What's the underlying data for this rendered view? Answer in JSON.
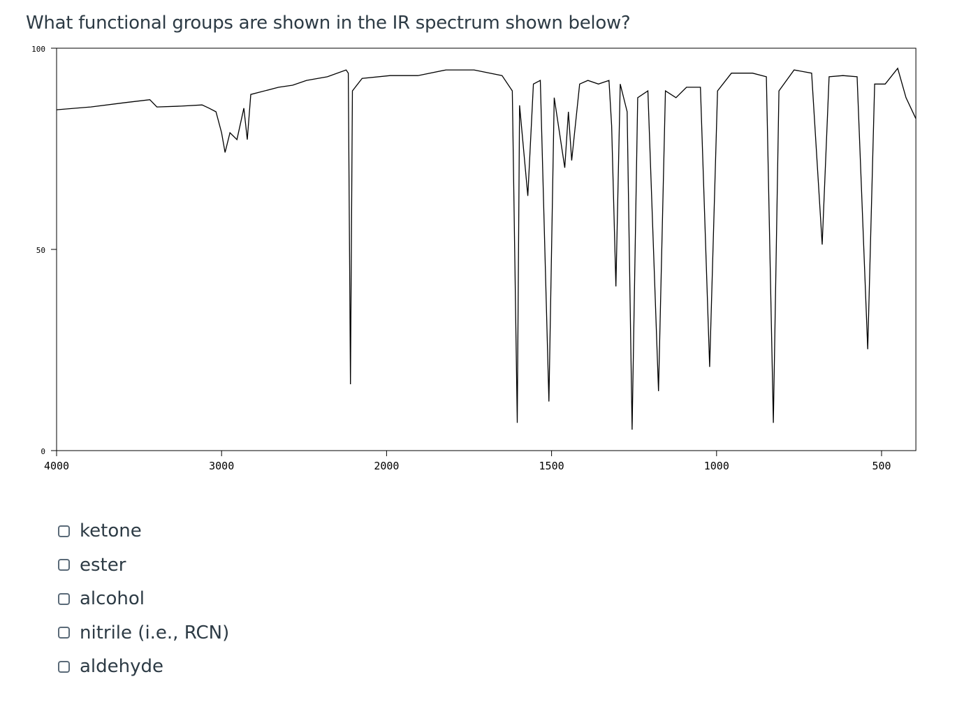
{
  "question": "What functional groups are shown in the IR spectrum shown below?",
  "chart_data": {
    "type": "line",
    "color": "#000000",
    "x": [
      4000,
      3793,
      3582,
      3435,
      3392,
      3245,
      3118,
      3076,
      3034,
      3000,
      2979,
      2949,
      2907,
      2865,
      2844,
      2823,
      2654,
      2570,
      2485,
      2359,
      2245,
      2232,
      2219,
      2207,
      2148,
      1989,
      1905,
      1820,
      1735,
      1650,
      1619,
      1604,
      1597,
      1572,
      1555,
      1534,
      1508,
      1492,
      1460,
      1449,
      1439,
      1415,
      1390,
      1358,
      1326,
      1318,
      1305,
      1292,
      1271,
      1256,
      1239,
      1208,
      1176,
      1155,
      1123,
      1091,
      1049,
      1021,
      997,
      955,
      891,
      849,
      828,
      811,
      765,
      712,
      680,
      659,
      617,
      574,
      542,
      521,
      489,
      451,
      426,
      396
    ],
    "values": [
      84.7,
      85.4,
      86.5,
      87.2,
      85.4,
      85.6,
      85.9,
      85.1,
      84.2,
      79.0,
      74.1,
      79.0,
      77.3,
      85.1,
      77.3,
      88.5,
      90.3,
      90.8,
      92.0,
      92.9,
      94.6,
      93.8,
      16.5,
      89.4,
      92.5,
      93.2,
      93.2,
      94.6,
      94.6,
      93.2,
      89.4,
      6.9,
      85.8,
      63.3,
      91.1,
      92.0,
      12.2,
      87.7,
      70.3,
      84.2,
      72.1,
      91.1,
      92.0,
      91.1,
      92.0,
      80.7,
      40.8,
      91.1,
      84.2,
      5.2,
      87.7,
      89.4,
      14.8,
      89.4,
      87.7,
      90.3,
      90.3,
      20.8,
      89.4,
      93.8,
      93.8,
      92.9,
      6.9,
      89.4,
      94.6,
      93.8,
      51.2,
      92.9,
      93.2,
      92.9,
      25.2,
      91.1,
      91.1,
      95.0,
      87.7,
      82.5
    ],
    "xlim": [
      4000,
      396
    ],
    "ylim": [
      0,
      100
    ],
    "xticks": [
      4000,
      3000,
      2000,
      1500,
      1000,
      500
    ],
    "yticks": [
      0,
      50,
      100
    ]
  },
  "options": [
    "ketone",
    "ester",
    "alcohol",
    "nitrile (i.e., RCN)",
    "aldehyde"
  ]
}
